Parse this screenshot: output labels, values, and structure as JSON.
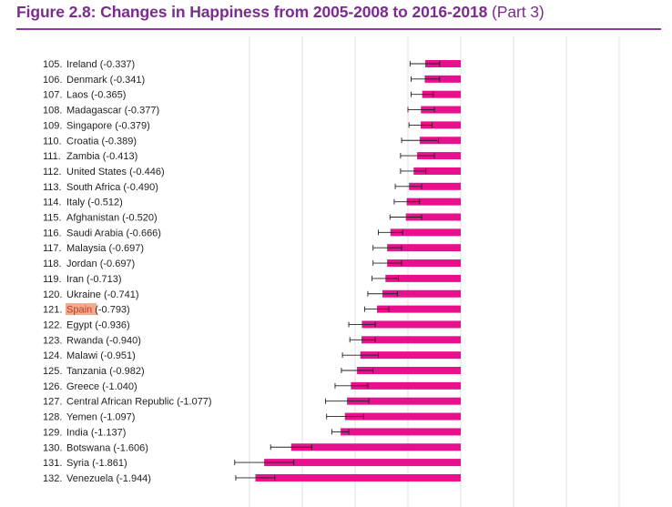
{
  "title": "Figure 2.8: Changes in Happiness from 2005-2008 to 2016-2018",
  "title_part": "(Part 3)",
  "highlight_color": "#f4a98a",
  "bar_color": "#e8108c",
  "chart_data": {
    "type": "bar",
    "orientation": "horizontal",
    "xlim": [
      -2.5,
      0
    ],
    "grid": true,
    "rows": [
      {
        "rank": "105.",
        "name": "Ireland",
        "value": "(-0.337)",
        "v": -0.337,
        "ci": [
          -0.48,
          -0.2
        ],
        "highlight": false
      },
      {
        "rank": "106.",
        "name": "Denmark",
        "value": "(-0.341)",
        "v": -0.341,
        "ci": [
          -0.47,
          -0.2
        ],
        "highlight": false
      },
      {
        "rank": "107.",
        "name": "Laos",
        "value": "(-0.365)",
        "v": -0.365,
        "ci": [
          -0.47,
          -0.26
        ],
        "highlight": false
      },
      {
        "rank": "108.",
        "name": "Madagascar",
        "value": "(-0.377)",
        "v": -0.377,
        "ci": [
          -0.5,
          -0.25
        ],
        "highlight": false
      },
      {
        "rank": "109.",
        "name": "Singapore",
        "value": "(-0.379)",
        "v": -0.379,
        "ci": [
          -0.49,
          -0.27
        ],
        "highlight": false
      },
      {
        "rank": "110.",
        "name": "Croatia",
        "value": "(-0.389)",
        "v": -0.389,
        "ci": [
          -0.56,
          -0.21
        ],
        "highlight": false
      },
      {
        "rank": "111.",
        "name": "Zambia",
        "value": "(-0.413)",
        "v": -0.413,
        "ci": [
          -0.57,
          -0.25
        ],
        "highlight": false
      },
      {
        "rank": "112.",
        "name": "United States",
        "value": "(-0.446)",
        "v": -0.446,
        "ci": [
          -0.57,
          -0.33
        ],
        "highlight": false
      },
      {
        "rank": "113.",
        "name": "South Africa",
        "value": "(-0.490)",
        "v": -0.49,
        "ci": [
          -0.62,
          -0.37
        ],
        "highlight": false
      },
      {
        "rank": "114.",
        "name": "Italy",
        "value": "(-0.512)",
        "v": -0.512,
        "ci": [
          -0.63,
          -0.39
        ],
        "highlight": false
      },
      {
        "rank": "115.",
        "name": "Afghanistan",
        "value": "(-0.520)",
        "v": -0.52,
        "ci": [
          -0.67,
          -0.37
        ],
        "highlight": false
      },
      {
        "rank": "116.",
        "name": "Saudi Arabia",
        "value": "(-0.666)",
        "v": -0.666,
        "ci": [
          -0.78,
          -0.55
        ],
        "highlight": false
      },
      {
        "rank": "117.",
        "name": "Malaysia",
        "value": "(-0.697)",
        "v": -0.697,
        "ci": [
          -0.83,
          -0.56
        ],
        "highlight": false
      },
      {
        "rank": "118.",
        "name": "Jordan",
        "value": "(-0.697)",
        "v": -0.697,
        "ci": [
          -0.83,
          -0.56
        ],
        "highlight": false
      },
      {
        "rank": "119.",
        "name": "Iran",
        "value": "(-0.713)",
        "v": -0.713,
        "ci": [
          -0.84,
          -0.59
        ],
        "highlight": false
      },
      {
        "rank": "120.",
        "name": "Ukraine",
        "value": "(-0.741)",
        "v": -0.741,
        "ci": [
          -0.88,
          -0.6
        ],
        "highlight": false
      },
      {
        "rank": "121.",
        "name": "Spain",
        "value": "(-0.793)",
        "v": -0.793,
        "ci": [
          -0.91,
          -0.68
        ],
        "highlight": true
      },
      {
        "rank": "122.",
        "name": "Egypt",
        "value": "(-0.936)",
        "v": -0.936,
        "ci": [
          -1.06,
          -0.81
        ],
        "highlight": false
      },
      {
        "rank": "123.",
        "name": "Rwanda",
        "value": "(-0.940)",
        "v": -0.94,
        "ci": [
          -1.05,
          -0.81
        ],
        "highlight": false
      },
      {
        "rank": "124.",
        "name": "Malawi",
        "value": "(-0.951)",
        "v": -0.951,
        "ci": [
          -1.12,
          -0.78
        ],
        "highlight": false
      },
      {
        "rank": "125.",
        "name": "Tanzania",
        "value": "(-0.982)",
        "v": -0.982,
        "ci": [
          -1.13,
          -0.83
        ],
        "highlight": false
      },
      {
        "rank": "126.",
        "name": "Greece",
        "value": "(-1.040)",
        "v": -1.04,
        "ci": [
          -1.19,
          -0.88
        ],
        "highlight": false
      },
      {
        "rank": "127.",
        "name": "Central African Republic",
        "value": "(-1.077)",
        "v": -1.077,
        "ci": [
          -1.28,
          -0.87
        ],
        "highlight": false
      },
      {
        "rank": "128.",
        "name": "Yemen",
        "value": "(-1.097)",
        "v": -1.097,
        "ci": [
          -1.27,
          -0.92
        ],
        "highlight": false
      },
      {
        "rank": "129.",
        "name": "India",
        "value": "(-1.137)",
        "v": -1.137,
        "ci": [
          -1.22,
          -1.06
        ],
        "highlight": false
      },
      {
        "rank": "130.",
        "name": "Botswana",
        "value": "(-1.606)",
        "v": -1.606,
        "ci": [
          -1.8,
          -1.41
        ],
        "highlight": false
      },
      {
        "rank": "131.",
        "name": "Syria",
        "value": "(-1.861)",
        "v": -1.861,
        "ci": [
          -2.14,
          -1.58
        ],
        "highlight": false
      },
      {
        "rank": "132.",
        "name": "Venezuela",
        "value": "(-1.944)",
        "v": -1.944,
        "ci": [
          -2.13,
          -1.76
        ],
        "highlight": false
      }
    ]
  }
}
